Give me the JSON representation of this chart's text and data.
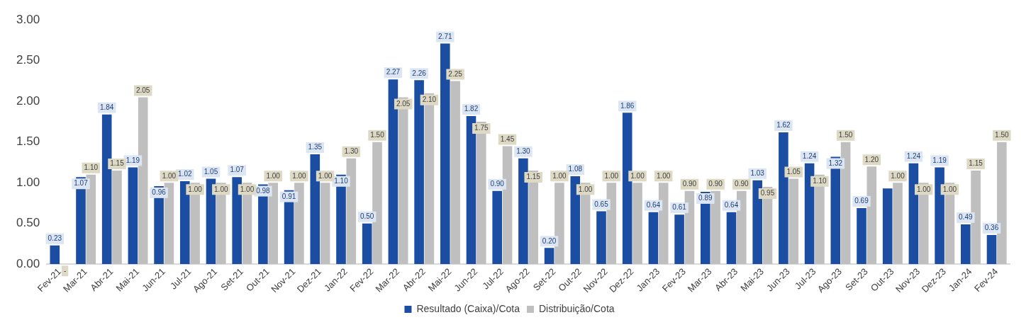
{
  "chart_data": {
    "type": "bar",
    "categories": [
      "Fev-21",
      "Mar-21",
      "Abr-21",
      "Mai-21",
      "Jun-21",
      "Jul-21",
      "Ago-21",
      "Set-21",
      "Out-21",
      "Nov-21",
      "Dez-21",
      "Jan-22",
      "Fev-22",
      "Mar-22",
      "Abr-22",
      "Mai-22",
      "Jun-22",
      "Jul-22",
      "Ago-22",
      "Set-22",
      "Out-22",
      "Nov-22",
      "Dez-22",
      "Jan-23",
      "Fev-23",
      "Mar-23",
      "Abr-23",
      "Mai-23",
      "Jun-23",
      "Jul-23",
      "Ago-23",
      "Set-23",
      "Out-23",
      "Nov-23",
      "Dez-23",
      "Jan-24",
      "Fev-24"
    ],
    "series": [
      {
        "name": "Resultado (Caixa)/Cota",
        "color": "#1b4ea3",
        "values": [
          0.23,
          1.07,
          1.84,
          1.19,
          0.96,
          1.02,
          1.05,
          1.07,
          0.98,
          0.91,
          1.35,
          1.1,
          0.5,
          2.27,
          2.26,
          2.71,
          1.82,
          0.9,
          1.3,
          0.2,
          1.08,
          0.65,
          1.86,
          0.64,
          0.61,
          0.89,
          0.64,
          1.03,
          1.62,
          1.24,
          1.32,
          0.69,
          0.93,
          1.24,
          1.19,
          0.49,
          0.36
        ],
        "value_labels": [
          "0.23",
          "1.07",
          "1.84",
          "1.19",
          "0.96",
          "1.02",
          "1.05",
          "1.07",
          "0.98",
          "0.91",
          "1.35",
          "1.10",
          "0.50",
          "2.27",
          "2.26",
          "2.71",
          "1.82",
          "0.90",
          "1.30",
          "0.20",
          "1.08",
          "0.65",
          "1.86",
          "0.64",
          "0.61",
          "0.89",
          "0.64",
          "1.03",
          "1.62",
          "1.24",
          "1.32",
          "0.69",
          null,
          "1.24",
          "1.19",
          "0.49",
          "0.36"
        ]
      },
      {
        "name": "Distribuição/Cota",
        "color": "#bfbfbf",
        "values": [
          0,
          1.1,
          1.15,
          2.05,
          1.0,
          1.0,
          1.0,
          1.0,
          1.0,
          1.0,
          1.0,
          1.3,
          1.5,
          2.05,
          2.1,
          2.25,
          1.75,
          1.45,
          1.15,
          1.0,
          1.0,
          1.0,
          1.0,
          1.0,
          0.9,
          0.9,
          0.9,
          0.95,
          1.05,
          1.1,
          1.5,
          1.2,
          1.0,
          1.0,
          1.0,
          1.15,
          1.5
        ],
        "value_labels": [
          "-",
          "1.10",
          "1.15",
          "2.05",
          "1.00",
          "1.00",
          "1.00",
          "1.00",
          "1.00",
          "1.00",
          "1.00",
          "1.30",
          "1.50",
          "2.05",
          "2.10",
          "2.25",
          "1.75",
          "1.45",
          "1.15",
          "1.00",
          "1.00",
          "1.00",
          "1.00",
          "1.00",
          "0.90",
          "0.90",
          "0.90",
          "0.95",
          "1.05",
          "1.10",
          "1.50",
          "1.20",
          "1.00",
          "1.00",
          "1.00",
          "1.15",
          "1.50"
        ]
      }
    ],
    "ylim": [
      0,
      3
    ],
    "yticks": [
      {
        "value": 0,
        "label": "0.00"
      },
      {
        "value": 0.5,
        "label": "0.50"
      },
      {
        "value": 1,
        "label": "1.00"
      },
      {
        "value": 1.5,
        "label": "1.50"
      },
      {
        "value": 2,
        "label": "2.00"
      },
      {
        "value": 2.5,
        "label": "2.50"
      },
      {
        "value": 3,
        "label": "3.00"
      }
    ],
    "grid": false,
    "legend": "bottom"
  }
}
